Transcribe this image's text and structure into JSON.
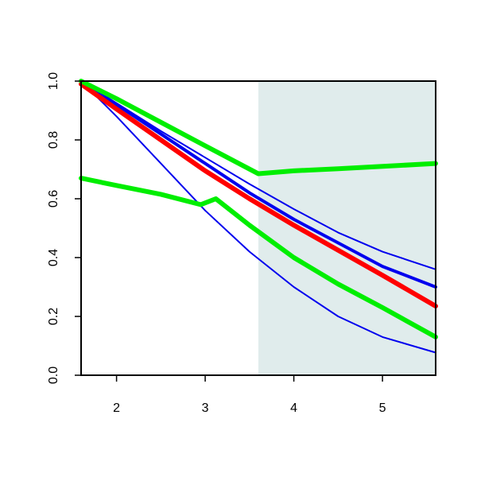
{
  "chart_data": {
    "type": "line",
    "title": "",
    "xlabel": "",
    "ylabel": "",
    "xlim": [
      1.6,
      5.6
    ],
    "ylim": [
      0.0,
      1.0
    ],
    "x_ticks": [
      2,
      3,
      4,
      5
    ],
    "x_tick_labels": [
      "2",
      "3",
      "4",
      "5"
    ],
    "y_ticks": [
      0.0,
      0.2,
      0.4,
      0.6,
      0.8,
      1.0
    ],
    "y_tick_labels": [
      "0.0",
      "0.2",
      "0.4",
      "0.6",
      "0.8",
      "1.0"
    ],
    "grid": false,
    "shaded_region": {
      "x_from": 3.6,
      "x_to": 5.6,
      "color": "#e0ecec"
    },
    "series": [
      {
        "color": "#0000ee",
        "width": "thin",
        "points": [
          [
            1.6,
            1.0
          ],
          [
            2.0,
            0.88
          ],
          [
            2.5,
            0.72
          ],
          [
            3.0,
            0.56
          ],
          [
            3.5,
            0.42
          ],
          [
            4.0,
            0.3
          ],
          [
            4.5,
            0.2
          ],
          [
            5.0,
            0.13
          ],
          [
            5.6,
            0.077
          ]
        ]
      },
      {
        "color": "#0000ee",
        "width": "thin",
        "points": [
          [
            1.6,
            1.0
          ],
          [
            2.0,
            0.925
          ],
          [
            2.5,
            0.83
          ],
          [
            3.0,
            0.74
          ],
          [
            3.5,
            0.65
          ],
          [
            4.0,
            0.565
          ],
          [
            4.5,
            0.485
          ],
          [
            5.0,
            0.42
          ],
          [
            5.6,
            0.36
          ]
        ]
      },
      {
        "color": "#0000ee",
        "width": "medium",
        "points": [
          [
            1.6,
            1.0
          ],
          [
            2.0,
            0.92
          ],
          [
            2.5,
            0.82
          ],
          [
            3.0,
            0.72
          ],
          [
            3.5,
            0.62
          ],
          [
            4.0,
            0.53
          ],
          [
            4.5,
            0.45
          ],
          [
            5.0,
            0.37
          ],
          [
            5.6,
            0.3
          ]
        ]
      },
      {
        "color": "#ff0000",
        "width": "thick",
        "points": [
          [
            1.6,
            0.99
          ],
          [
            2.0,
            0.905
          ],
          [
            2.5,
            0.8
          ],
          [
            3.0,
            0.695
          ],
          [
            3.5,
            0.6
          ],
          [
            4.0,
            0.51
          ],
          [
            4.5,
            0.425
          ],
          [
            5.0,
            0.34
          ],
          [
            5.6,
            0.235
          ]
        ]
      },
      {
        "color": "#00ee00",
        "width": "thick",
        "points": [
          [
            1.6,
            1.0
          ],
          [
            2.0,
            0.94
          ],
          [
            2.5,
            0.86
          ],
          [
            3.0,
            0.78
          ],
          [
            3.6,
            0.685
          ],
          [
            4.0,
            0.695
          ],
          [
            4.5,
            0.702
          ],
          [
            5.0,
            0.71
          ],
          [
            5.6,
            0.72
          ]
        ]
      },
      {
        "color": "#00ee00",
        "width": "thick",
        "points": [
          [
            1.6,
            0.67
          ],
          [
            2.0,
            0.645
          ],
          [
            2.5,
            0.615
          ],
          [
            2.95,
            0.58
          ],
          [
            3.12,
            0.6
          ],
          [
            3.5,
            0.51
          ],
          [
            4.0,
            0.4
          ],
          [
            4.5,
            0.31
          ],
          [
            5.0,
            0.23
          ],
          [
            5.6,
            0.13
          ]
        ]
      }
    ]
  }
}
